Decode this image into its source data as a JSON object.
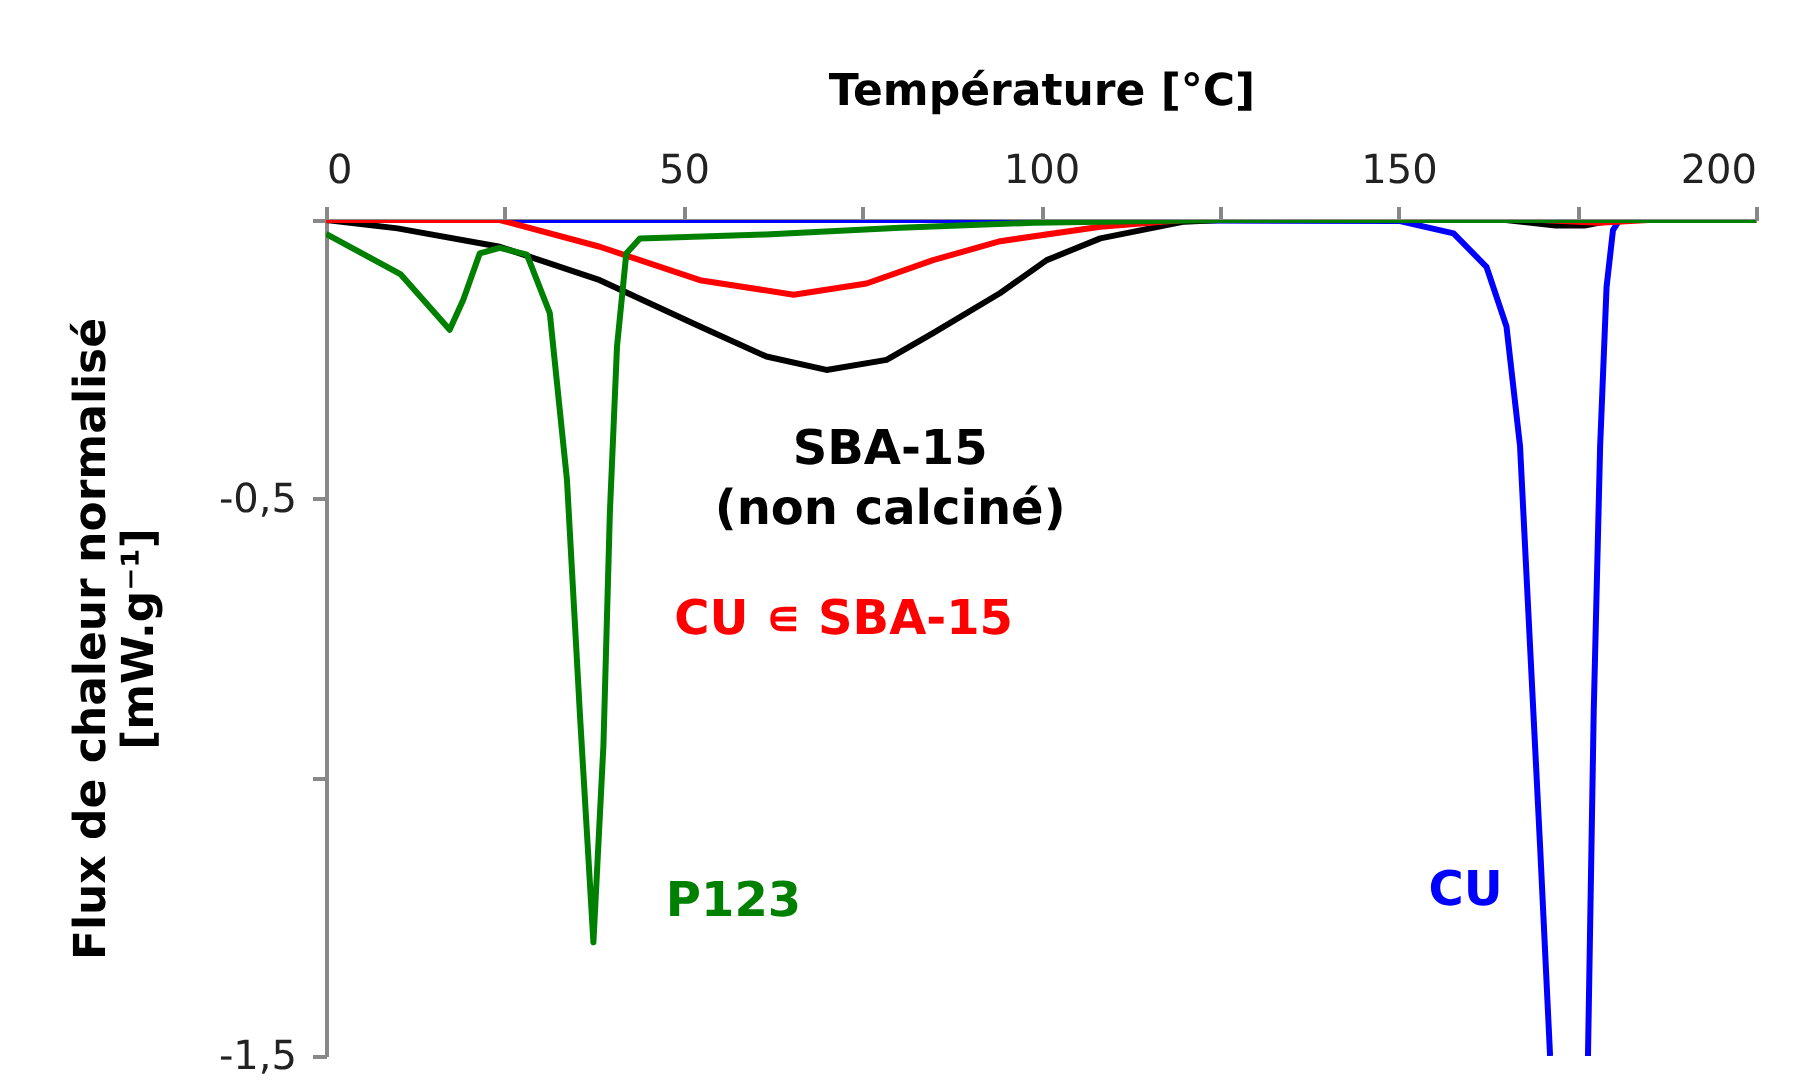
{
  "chart_data": {
    "type": "line",
    "xlabel": "Température [°C]",
    "ylabel": "Flux de chaleur normalisé\n[mW.g⁻¹]",
    "xlim": [
      0,
      200
    ],
    "ylim": [
      -1.5,
      0
    ],
    "xticks": [
      0,
      {
        "value": 25,
        "label": null
      },
      50,
      {
        "value": 75,
        "label": null
      },
      100,
      {
        "value": 125,
        "label": null
      },
      150,
      {
        "value": 175,
        "label": null
      },
      200
    ],
    "yticks": [
      {
        "value": 0,
        "label": null
      },
      {
        "value": -0.5,
        "label": "-0,5"
      },
      {
        "value": -1,
        "label": null
      },
      {
        "value": -1.5,
        "label": "-1,5"
      }
    ],
    "grid": false,
    "legend": false,
    "line_style": "solid",
    "marker": "none",
    "series": [
      {
        "name": "CU",
        "color": "#0000ff",
        "x": [
          0,
          100,
          150.2,
          157.7,
          162.3,
          165.1,
          167,
          168.4,
          169.8,
          171.2,
          172,
          176.5,
          177.3,
          178.2,
          179.1,
          180,
          180.9,
          200
        ],
        "values": [
          0,
          0,
          -0.002,
          -0.024,
          -0.084,
          -0.191,
          -0.406,
          -0.765,
          -1.123,
          -1.5,
          null,
          -1.5,
          -0.884,
          -0.406,
          -0.12,
          -0.018,
          0,
          0
        ]
      },
      {
        "name": "SBA-15\n(non calciné)",
        "color": "#000000",
        "x": [
          0,
          10,
          24.3,
          38.3,
          52.3,
          61.6,
          70,
          78.4,
          84.9,
          94.3,
          100.8,
          108.3,
          120,
          125,
          165,
          172,
          176,
          180,
          200
        ],
        "values": [
          0,
          -0.015,
          -0.048,
          -0.108,
          -0.191,
          -0.245,
          -0.269,
          -0.251,
          -0.203,
          -0.131,
          -0.072,
          -0.033,
          -0.003,
          0,
          0,
          -0.01,
          -0.01,
          0,
          0
        ]
      },
      {
        "name": "CU ∊ SBA-15",
        "color": "#ff0000",
        "x": [
          0,
          24.3,
          38.3,
          52.3,
          65.4,
          75.6,
          84.9,
          94.3,
          108.3,
          120,
          170,
          178,
          185,
          200
        ],
        "values": [
          0,
          0,
          -0.048,
          -0.108,
          -0.134,
          -0.114,
          -0.072,
          -0.038,
          -0.012,
          0,
          0,
          -0.005,
          0,
          0
        ]
      },
      {
        "name": "P123",
        "color": "#008000",
        "x": [
          0,
          10.4,
          17.3,
          19.2,
          21.5,
          24.3,
          28.1,
          31.3,
          33.7,
          35.5,
          37.4,
          38.8,
          39.7,
          40.7,
          42,
          43.9,
          61.5,
          80.3,
          98.9,
          125,
          200
        ],
        "values": [
          -0.025,
          -0.097,
          -0.197,
          -0.143,
          -0.06,
          -0.05,
          -0.062,
          -0.167,
          -0.466,
          -0.884,
          -1.296,
          -0.943,
          -0.526,
          -0.227,
          -0.06,
          -0.033,
          -0.026,
          -0.014,
          -0.005,
          0,
          0
        ]
      }
    ]
  }
}
